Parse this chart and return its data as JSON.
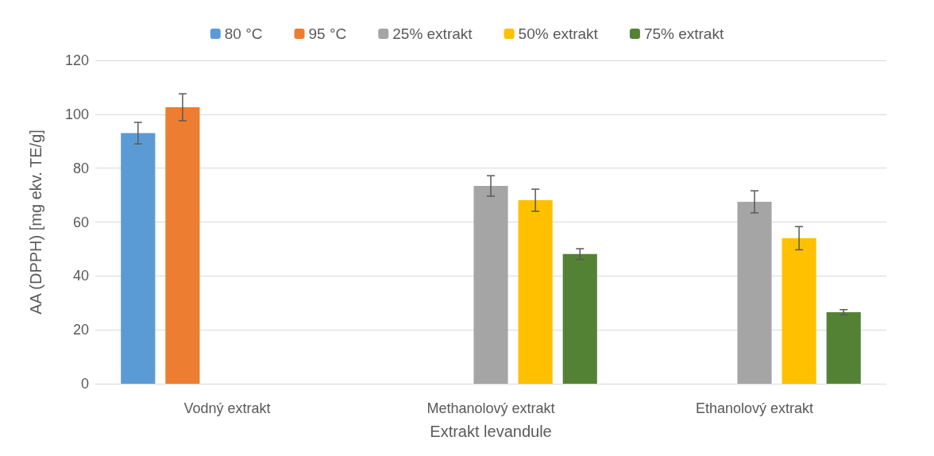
{
  "chart_data": {
    "type": "bar",
    "xlabel": "Extrakt levandule",
    "ylabel": "AA (DPPH) [mg ekv. TE/g]",
    "categories": [
      "Vodný extrakt",
      "Methanolový extrakt",
      "Ethanolový extrakt"
    ],
    "series": [
      {
        "name": "80 °C",
        "color": "#5b9bd5",
        "values": [
          93,
          null,
          null
        ],
        "errors": [
          4,
          null,
          null
        ]
      },
      {
        "name": "95 °C",
        "color": "#ed7d31",
        "values": [
          102.6,
          null,
          null
        ],
        "errors": [
          5,
          null,
          null
        ]
      },
      {
        "name": "25% extrakt",
        "color": "#a5a5a5",
        "values": [
          null,
          73.4,
          67.5
        ],
        "errors": [
          null,
          3.8,
          4.1
        ]
      },
      {
        "name": "50% extrakt",
        "color": "#ffc000",
        "values": [
          null,
          68.1,
          54
        ],
        "errors": [
          null,
          4.1,
          4.3
        ]
      },
      {
        "name": "75% extrakt",
        "color": "#548235",
        "values": [
          null,
          48.1,
          26.5
        ],
        "errors": [
          null,
          2,
          1
        ]
      }
    ],
    "ylim": [
      0,
      120
    ],
    "yticks": [
      0,
      20,
      40,
      60,
      80,
      100,
      120
    ],
    "grid": "y",
    "legend": "top"
  }
}
